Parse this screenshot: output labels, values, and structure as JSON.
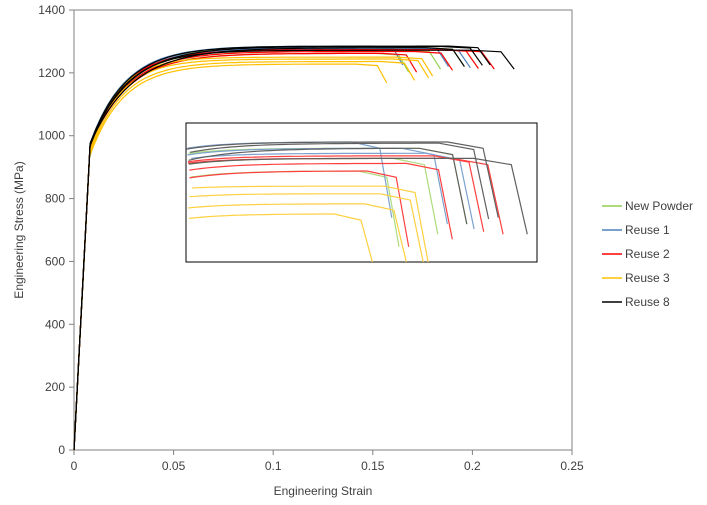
{
  "chart_data": {
    "type": "line",
    "title": "",
    "xlabel": "Engineering Strain",
    "ylabel": "Engineering Stress (MPa)",
    "xlim": [
      0,
      0.25
    ],
    "ylim": [
      0,
      1400
    ],
    "x_ticks": [
      0,
      0.05,
      0.1,
      0.15,
      0.2,
      0.25
    ],
    "x_tick_labels": [
      "0",
      "0.05",
      "0.1",
      "0.15",
      "0.2",
      "0.25"
    ],
    "y_ticks": [
      0,
      200,
      400,
      600,
      800,
      1000,
      1200,
      1400
    ],
    "y_tick_labels": [
      "0",
      "200",
      "400",
      "600",
      "800",
      "1000",
      "1200",
      "1400"
    ],
    "grid": false,
    "legend_position": "right",
    "inset": "zoomed view of curve ends",
    "series": [
      {
        "name": "New Powder",
        "color": "#92D050",
        "curves": [
          {
            "end_strain": 0.168,
            "uts": 1262
          },
          {
            "end_strain": 0.184,
            "uts": 1272
          },
          {
            "end_strain": 0.196,
            "uts": 1280
          }
        ]
      },
      {
        "name": "Reuse 1",
        "color": "#4F81BD",
        "curves": [
          {
            "end_strain": 0.165,
            "uts": 1285
          },
          {
            "end_strain": 0.188,
            "uts": 1280
          },
          {
            "end_strain": 0.199,
            "uts": 1276
          }
        ]
      },
      {
        "name": "Reuse 2",
        "color": "#FF0000",
        "curves": [
          {
            "end_strain": 0.172,
            "uts": 1262
          },
          {
            "end_strain": 0.19,
            "uts": 1268
          },
          {
            "end_strain": 0.203,
            "uts": 1274
          },
          {
            "end_strain": 0.211,
            "uts": 1272
          }
        ]
      },
      {
        "name": "Reuse 3",
        "color": "#FFC000",
        "curves": [
          {
            "end_strain": 0.157,
            "uts": 1228
          },
          {
            "end_strain": 0.171,
            "uts": 1236
          },
          {
            "end_strain": 0.178,
            "uts": 1244
          },
          {
            "end_strain": 0.18,
            "uts": 1250
          }
        ]
      },
      {
        "name": "Reuse 8",
        "color": "#000000",
        "curves": [
          {
            "end_strain": 0.196,
            "uts": 1280
          },
          {
            "end_strain": 0.205,
            "uts": 1284
          },
          {
            "end_strain": 0.209,
            "uts": 1285
          },
          {
            "end_strain": 0.221,
            "uts": 1272
          }
        ]
      }
    ]
  }
}
